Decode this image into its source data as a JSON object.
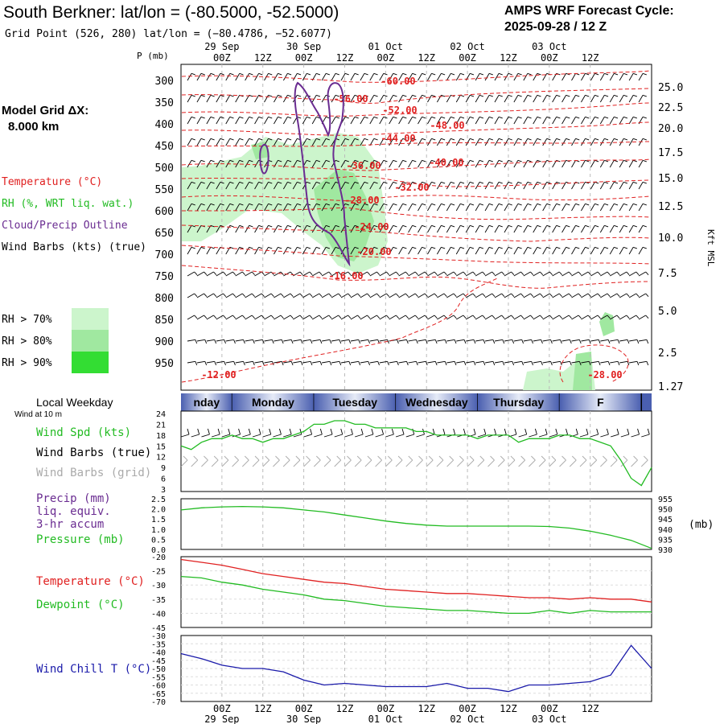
{
  "header": {
    "title": "South Berkner:  lat/lon = (-80.5000, -52.5000)",
    "subtitle": "Grid Point (526, 280) lat/lon = (−80.4786, −52.6077)",
    "cycle_label": "AMPS WRF Forecast Cycle:",
    "cycle_value": "2025-09-28 / 12  Z"
  },
  "time_axis": {
    "ticks": [
      "00Z",
      "12Z",
      "00Z",
      "12Z",
      "00Z",
      "12Z",
      "00Z",
      "12Z",
      "00Z",
      "12Z"
    ],
    "dates": [
      "29 Sep",
      "30 Sep",
      "01 Oct",
      "02 Oct",
      "03 Oct"
    ]
  },
  "weekday_band": {
    "label": "Local Weekday",
    "days": [
      "nday",
      "Monday",
      "Tuesday",
      "Wednesday",
      "Thursday",
      "F"
    ]
  },
  "upper_panel": {
    "p_label": "P (mb)",
    "pressure_ticks": [
      "300",
      "350",
      "400",
      "450",
      "500",
      "550",
      "600",
      "650",
      "700",
      "750",
      "800",
      "850",
      "900",
      "950"
    ],
    "height_ticks": [
      "25.0",
      "22.5",
      "20.0",
      "17.5",
      "15.0",
      "12.5",
      "10.0",
      "7.5",
      "5.0",
      "2.5",
      "1.27"
    ],
    "height_label": "Kft MSL",
    "model_grid_label": "Model Grid ΔX:",
    "model_grid_value": "8.000 km",
    "legend": {
      "temperature": "Temperature (°C)",
      "rh": "RH (%, WRT liq. wat.)",
      "cloud": "Cloud/Precip Outline",
      "barbs": "Wind Barbs (kts) (true)"
    },
    "rh_legend": [
      "RH > 70%",
      "RH > 80%",
      "RH > 90%"
    ],
    "contour_labels": [
      "-60.00",
      "-56.00",
      "-52.00",
      "-48.00",
      "-44.00",
      "-40.00",
      "-36.00",
      "-32.00",
      "-28.00",
      "-24.00",
      "-20.00",
      "-16.00",
      "-12.00",
      "-28.00"
    ]
  },
  "wind_panel": {
    "sublabel": "Wind at 10 m",
    "legend_speed": "Wind Spd (kts)",
    "legend_barbs_true": "Wind Barbs (true)",
    "legend_barbs_grid": "Wind Barbs (grid)",
    "y_ticks": [
      "24",
      "21",
      "18",
      "15",
      "12",
      "9",
      "6",
      "3"
    ]
  },
  "precip_panel": {
    "legend_precip": "Precip (mm)",
    "legend_liq": "liq. equiv.",
    "legend_accum": "3-hr accum",
    "legend_pressure": "Pressure (mb)",
    "left_ticks": [
      "2.5",
      "2.0",
      "1.5",
      "1.0",
      "0.5",
      "0.0"
    ],
    "right_ticks": [
      "955",
      "950",
      "945",
      "940",
      "935",
      "930"
    ],
    "right_unit": "(mb)"
  },
  "temp_panel": {
    "legend_temp": "Temperature (°C)",
    "legend_dew": "Dewpoint (°C)",
    "y_ticks": [
      "-20",
      "-25",
      "-30",
      "-35",
      "-40",
      "-45"
    ]
  },
  "chill_panel": {
    "legend": "Wind Chill T (°C)",
    "y_ticks": [
      "-30",
      "-35",
      "-40",
      "-45",
      "-50",
      "-55",
      "-60",
      "-65",
      "-70"
    ]
  },
  "colors": {
    "temperature": "#e02020",
    "rh70": "#ccf5cc",
    "rh80": "#a0e8a0",
    "rh90": "#33dd33",
    "cloud": "#6a2c91",
    "wind_speed": "#22bb22",
    "pressure": "#22bb22",
    "dewpoint": "#22bb22",
    "wind_chill": "#1a1aaa",
    "grid_barbs": "#aaaaaa"
  },
  "chart_data": [
    {
      "type": "line",
      "panel": "wind",
      "x_hours": [
        0,
        3,
        6,
        9,
        12,
        15,
        18,
        21,
        24,
        27,
        30,
        33,
        36,
        39,
        42,
        45,
        48,
        51,
        54,
        57,
        60,
        63,
        66,
        69,
        72,
        75,
        78,
        81,
        84,
        87,
        90,
        93,
        96,
        99,
        102,
        105,
        108,
        111,
        114,
        117,
        120,
        123,
        126,
        129,
        132,
        135,
        138
      ],
      "series": [
        {
          "name": "Wind Spd (kts)",
          "values": [
            15,
            14,
            16,
            17,
            17,
            18,
            17,
            17,
            16,
            17,
            17,
            18,
            19,
            21,
            21,
            22,
            22,
            21,
            21,
            20,
            20,
            20,
            20,
            19,
            19,
            18,
            18,
            18,
            18,
            17,
            18,
            18,
            18,
            16,
            17,
            17,
            17,
            18,
            18,
            17,
            17,
            16,
            15,
            11,
            6,
            4,
            9
          ]
        }
      ],
      "ylim": [
        3,
        24
      ]
    },
    {
      "type": "line",
      "panel": "precip-pressure",
      "x_hours": [
        0,
        6,
        12,
        18,
        24,
        30,
        36,
        42,
        48,
        54,
        60,
        66,
        72,
        78,
        84,
        90,
        96,
        102,
        108,
        114,
        120,
        126,
        132,
        138
      ],
      "series": [
        {
          "name": "Pressure (mb)",
          "values": [
            949.5,
            950.5,
            951.0,
            951.2,
            951.0,
            950.5,
            949.5,
            948.5,
            947.0,
            945.5,
            944.0,
            942.8,
            942.0,
            941.5,
            941.5,
            941.5,
            941.5,
            941.5,
            941.3,
            940.5,
            939.0,
            937.0,
            934.5,
            930.5
          ]
        }
      ],
      "y_left_lim": [
        0.0,
        2.5
      ],
      "y_right_lim": [
        930,
        955
      ]
    },
    {
      "type": "line",
      "panel": "temperature",
      "x_hours": [
        0,
        6,
        12,
        18,
        24,
        30,
        36,
        42,
        48,
        54,
        60,
        66,
        72,
        78,
        84,
        90,
        96,
        102,
        108,
        114,
        120,
        126,
        132,
        138
      ],
      "series": [
        {
          "name": "Temperature (°C)",
          "values": [
            -21,
            -22,
            -23,
            -24.5,
            -26,
            -27,
            -28,
            -29,
            -29.5,
            -30.5,
            -31.5,
            -32,
            -32.5,
            -33,
            -33,
            -33.5,
            -34,
            -34.5,
            -34.5,
            -35,
            -34.5,
            -35,
            -35,
            -36
          ]
        },
        {
          "name": "Dewpoint (°C)",
          "values": [
            -27,
            -27.5,
            -29,
            -30,
            -31.5,
            -32.5,
            -33.5,
            -35,
            -35.5,
            -36.5,
            -37.5,
            -38,
            -38.5,
            -39,
            -39,
            -39.5,
            -40,
            -40,
            -39,
            -40,
            -39,
            -39.5,
            -39.5,
            -39.5
          ]
        }
      ],
      "ylim": [
        -45,
        -20
      ]
    },
    {
      "type": "line",
      "panel": "wind-chill",
      "x_hours": [
        0,
        6,
        12,
        18,
        24,
        30,
        36,
        42,
        48,
        54,
        60,
        66,
        72,
        78,
        84,
        90,
        96,
        102,
        108,
        114,
        120,
        126,
        132,
        138
      ],
      "series": [
        {
          "name": "Wind Chill T (°C)",
          "values": [
            -41,
            -44,
            -48,
            -50,
            -50,
            -52,
            -57,
            -60,
            -59,
            -60,
            -61,
            -61,
            -61,
            -59,
            -62,
            -62,
            -64,
            -60,
            -60,
            -59,
            -58,
            -54,
            -36,
            -50
          ]
        }
      ],
      "ylim": [
        -70,
        -30
      ]
    }
  ]
}
